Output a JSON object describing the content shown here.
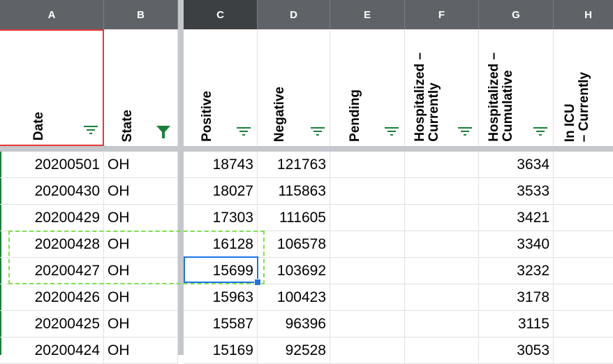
{
  "columns": {
    "A": "A",
    "B": "B",
    "C": "C",
    "D": "D",
    "E": "E",
    "F": "F",
    "G": "G",
    "H": "H"
  },
  "headers": {
    "date": "Date",
    "state": "State",
    "positive": "Positive",
    "negative": "Negative",
    "pending": "Pending",
    "hosp_current": "Hospitalized –\nCurrently",
    "hosp_cumulative": "Hospitalized –\nCumulative",
    "icu_current": "In ICU\n– Currently"
  },
  "rows": [
    {
      "date": "20200501",
      "state": "OH",
      "positive": "18743",
      "negative": "121763",
      "pending": "",
      "hosp_current": "",
      "hosp_cumulative": "3634",
      "icu": ""
    },
    {
      "date": "20200430",
      "state": "OH",
      "positive": "18027",
      "negative": "115863",
      "pending": "",
      "hosp_current": "",
      "hosp_cumulative": "3533",
      "icu": ""
    },
    {
      "date": "20200429",
      "state": "OH",
      "positive": "17303",
      "negative": "111605",
      "pending": "",
      "hosp_current": "",
      "hosp_cumulative": "3421",
      "icu": ""
    },
    {
      "date": "20200428",
      "state": "OH",
      "positive": "16128",
      "negative": "106578",
      "pending": "",
      "hosp_current": "",
      "hosp_cumulative": "3340",
      "icu": ""
    },
    {
      "date": "20200427",
      "state": "OH",
      "positive": "15699",
      "negative": "103692",
      "pending": "",
      "hosp_current": "",
      "hosp_cumulative": "3232",
      "icu": ""
    },
    {
      "date": "20200426",
      "state": "OH",
      "positive": "15963",
      "negative": "100423",
      "pending": "",
      "hosp_current": "",
      "hosp_cumulative": "3178",
      "icu": ""
    },
    {
      "date": "20200425",
      "state": "OH",
      "positive": "15587",
      "negative": "96396",
      "pending": "",
      "hosp_current": "",
      "hosp_cumulative": "3115",
      "icu": ""
    },
    {
      "date": "20200424",
      "state": "OH",
      "positive": "15169",
      "negative": "92528",
      "pending": "",
      "hosp_current": "",
      "hosp_cumulative": "3053",
      "icu": ""
    }
  ],
  "colors": {
    "selection_blue": "#1a73e8",
    "copy_marquee_green": "#7ee04a",
    "date_header_border": "#e53935",
    "filter_icon": "#188038"
  }
}
